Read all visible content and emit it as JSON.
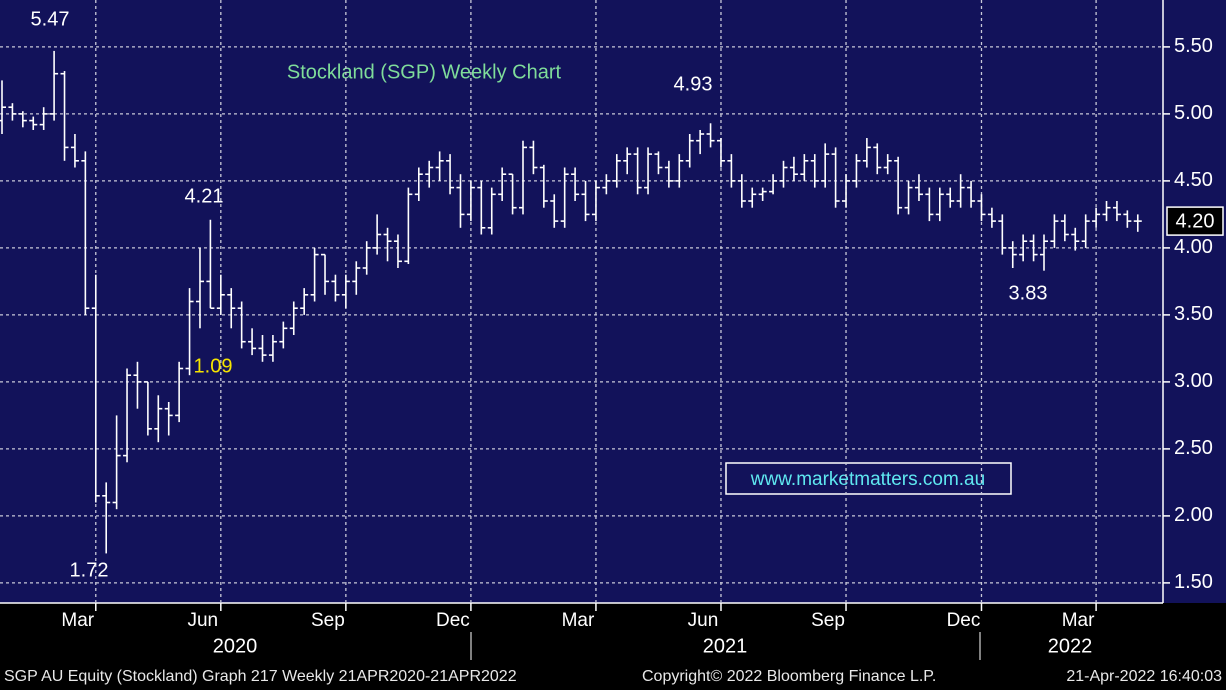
{
  "chart_data": {
    "type": "ohlc",
    "title": "Stockland (SGP) Weekly Chart",
    "title_color": "#7fdc9a",
    "color": "#ffffff",
    "categories": [
      null,
      null,
      null,
      null,
      null,
      null,
      null,
      null,
      null,
      "Mar",
      null,
      null,
      null,
      null,
      null,
      null,
      null,
      null,
      null,
      null,
      null,
      "Jun",
      null,
      null,
      null,
      null,
      null,
      null,
      null,
      null,
      null,
      null,
      null,
      "Sep",
      null,
      null,
      null,
      null,
      null,
      null,
      null,
      null,
      null,
      null,
      null,
      "Dec",
      null,
      null,
      null,
      null,
      null,
      null,
      null,
      null,
      null,
      null,
      null,
      "Mar",
      null,
      null,
      null,
      null,
      null,
      null,
      null,
      null,
      null,
      null,
      null,
      "Jun",
      null,
      null,
      null,
      null,
      null,
      null,
      null,
      null,
      null,
      null,
      null,
      "Sep",
      null,
      null,
      null,
      null,
      null,
      null,
      null,
      null,
      null,
      null,
      null,
      null,
      "Dec",
      null,
      null,
      null,
      null,
      null,
      null,
      null,
      null,
      null,
      null,
      "Mar",
      null,
      null,
      null,
      null
    ],
    "years": [
      "2020",
      "2021",
      "2022"
    ],
    "open": [
      4.95,
      5.05,
      5.0,
      4.95,
      4.92,
      5.0,
      5.3,
      4.75,
      4.65,
      3.55,
      2.15,
      2.1,
      2.45,
      3.05,
      3.0,
      2.65,
      2.8,
      2.75,
      3.1,
      3.6,
      3.75,
      3.55,
      3.65,
      3.55,
      3.3,
      3.25,
      3.2,
      3.3,
      3.4,
      3.55,
      3.65,
      3.95,
      3.75,
      3.65,
      3.75,
      3.85,
      4.0,
      4.1,
      4.05,
      3.9,
      4.4,
      4.55,
      4.6,
      4.65,
      4.45,
      4.25,
      4.45,
      4.15,
      4.4,
      4.55,
      4.3,
      4.75,
      4.6,
      4.35,
      4.2,
      4.55,
      4.4,
      4.25,
      4.45,
      4.5,
      4.65,
      4.7,
      4.45,
      4.7,
      4.6,
      4.5,
      4.65,
      4.8,
      4.85,
      4.8,
      4.65,
      4.5,
      4.35,
      4.4,
      4.42,
      4.5,
      4.6,
      4.55,
      4.65,
      4.5,
      4.7,
      4.35,
      4.5,
      4.65,
      4.75,
      4.6,
      4.65,
      4.3,
      4.45,
      4.4,
      4.25,
      4.4,
      4.35,
      4.45,
      4.35,
      4.25,
      4.2,
      4.0,
      3.95,
      4.05,
      3.95,
      4.05,
      4.2,
      4.1,
      4.05,
      4.2,
      4.25,
      4.3,
      4.25,
      4.2
    ],
    "high": [
      5.25,
      5.08,
      5.02,
      4.98,
      5.05,
      5.47,
      5.32,
      4.85,
      4.72,
      3.8,
      2.25,
      2.75,
      3.1,
      3.15,
      3.0,
      2.9,
      2.85,
      3.15,
      3.7,
      4.0,
      4.21,
      3.8,
      3.7,
      3.6,
      3.4,
      3.35,
      3.35,
      3.45,
      3.6,
      3.7,
      4.0,
      3.95,
      3.8,
      3.8,
      3.9,
      4.05,
      4.25,
      4.15,
      4.1,
      4.45,
      4.6,
      4.65,
      4.72,
      4.7,
      4.55,
      4.5,
      4.5,
      4.45,
      4.6,
      4.55,
      4.8,
      4.8,
      4.62,
      4.4,
      4.6,
      4.6,
      4.5,
      4.5,
      4.55,
      4.7,
      4.75,
      4.75,
      4.75,
      4.72,
      4.65,
      4.7,
      4.85,
      4.88,
      4.93,
      4.82,
      4.7,
      4.55,
      4.45,
      4.45,
      4.55,
      4.65,
      4.68,
      4.7,
      4.7,
      4.78,
      4.75,
      4.55,
      4.7,
      4.82,
      4.78,
      4.7,
      4.68,
      4.5,
      4.55,
      4.45,
      4.45,
      4.45,
      4.55,
      4.5,
      4.4,
      4.3,
      4.25,
      4.05,
      4.1,
      4.1,
      4.1,
      4.25,
      4.25,
      4.15,
      4.25,
      4.3,
      4.35,
      4.35,
      4.28,
      4.25
    ],
    "low": [
      4.85,
      4.95,
      4.9,
      4.88,
      4.88,
      4.95,
      4.65,
      4.6,
      3.5,
      2.1,
      1.72,
      2.05,
      2.4,
      2.8,
      2.6,
      2.55,
      2.6,
      2.7,
      3.05,
      3.4,
      3.55,
      3.5,
      3.4,
      3.25,
      3.2,
      3.15,
      3.15,
      3.25,
      3.35,
      3.5,
      3.6,
      3.65,
      3.6,
      3.55,
      3.65,
      3.8,
      3.95,
      3.9,
      3.85,
      3.88,
      4.35,
      4.45,
      4.5,
      4.4,
      4.15,
      4.2,
      4.1,
      4.1,
      4.35,
      4.25,
      4.25,
      4.55,
      4.3,
      4.15,
      4.15,
      4.35,
      4.2,
      4.2,
      4.4,
      4.45,
      4.55,
      4.4,
      4.4,
      4.55,
      4.45,
      4.45,
      4.6,
      4.7,
      4.75,
      4.6,
      4.45,
      4.3,
      4.3,
      4.35,
      4.4,
      4.45,
      4.5,
      4.5,
      4.45,
      4.45,
      4.3,
      4.3,
      4.45,
      4.6,
      4.55,
      4.55,
      4.25,
      4.25,
      4.35,
      4.2,
      4.2,
      4.3,
      4.3,
      4.3,
      4.2,
      4.15,
      3.95,
      3.85,
      3.9,
      3.9,
      3.83,
      4.0,
      4.05,
      3.98,
      4.0,
      4.15,
      4.2,
      4.2,
      4.15,
      4.12
    ],
    "close": [
      5.05,
      5.0,
      4.95,
      4.92,
      5.0,
      5.3,
      4.75,
      4.65,
      3.55,
      2.15,
      2.1,
      2.45,
      3.05,
      3.0,
      2.65,
      2.8,
      2.75,
      3.1,
      3.6,
      3.75,
      3.55,
      3.65,
      3.55,
      3.3,
      3.25,
      3.2,
      3.3,
      3.4,
      3.55,
      3.65,
      3.95,
      3.75,
      3.65,
      3.75,
      3.85,
      4.0,
      4.1,
      4.05,
      3.9,
      4.4,
      4.55,
      4.6,
      4.65,
      4.45,
      4.25,
      4.45,
      4.15,
      4.4,
      4.55,
      4.3,
      4.75,
      4.6,
      4.35,
      4.2,
      4.55,
      4.4,
      4.25,
      4.45,
      4.5,
      4.65,
      4.7,
      4.45,
      4.7,
      4.6,
      4.5,
      4.65,
      4.8,
      4.85,
      4.8,
      4.65,
      4.5,
      4.35,
      4.4,
      4.42,
      4.5,
      4.6,
      4.55,
      4.65,
      4.5,
      4.7,
      4.35,
      4.5,
      4.65,
      4.75,
      4.6,
      4.65,
      4.3,
      4.45,
      4.4,
      4.25,
      4.4,
      4.35,
      4.45,
      4.35,
      4.25,
      4.2,
      4.0,
      3.95,
      4.05,
      3.95,
      4.05,
      4.2,
      4.1,
      4.05,
      4.2,
      4.25,
      4.3,
      4.25,
      4.2,
      4.2
    ],
    "ylim": [
      1.35,
      5.85
    ],
    "yticks": [
      {
        "value": 1.5,
        "label": "1.50"
      },
      {
        "value": 2.0,
        "label": "2.00"
      },
      {
        "value": 2.5,
        "label": "2.50"
      },
      {
        "value": 3.0,
        "label": "3.00"
      },
      {
        "value": 3.5,
        "label": "3.50"
      },
      {
        "value": 4.0,
        "label": "4.00"
      },
      {
        "value": 4.5,
        "label": "4.50"
      },
      {
        "value": 5.0,
        "label": "5.00"
      },
      {
        "value": 5.5,
        "label": "5.50"
      }
    ],
    "grid": true,
    "last_value": {
      "value": 4.2,
      "label": "4.20"
    },
    "annotations": [
      {
        "value": 5.47,
        "label": "5.47",
        "color": "#ffffff"
      },
      {
        "value": 4.21,
        "label": "4.21",
        "color": "#ffffff"
      },
      {
        "value": 4.93,
        "label": "4.93",
        "color": "#ffffff"
      },
      {
        "value": 3.83,
        "label": "3.83",
        "color": "#ffffff"
      },
      {
        "value": 1.72,
        "label": "1.72",
        "color": "#ffffff"
      },
      {
        "value": 1.09,
        "label": "1.09",
        "color": "#f5e400"
      }
    ]
  },
  "watermark": "www.marketmatters.com.au",
  "footer": {
    "left": "SGP AU Equity (Stockland) Graph 217  Weekly 21APR2020-21APR2022",
    "middle": "Copyright© 2022 Bloomberg Finance L.P.",
    "right": "21-Apr-2022 16:40:03"
  }
}
